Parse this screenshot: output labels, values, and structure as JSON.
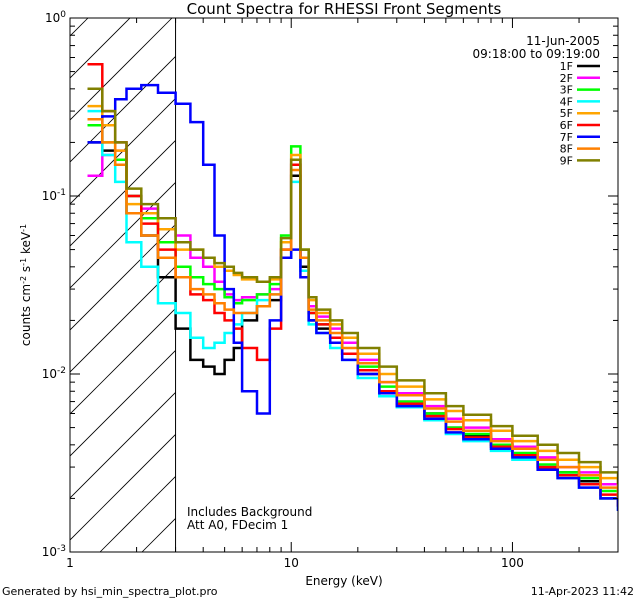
{
  "chart_data": {
    "type": "line",
    "title": "Count Spectra for RHESSI Front Segments",
    "xlabel": "Energy (keV)",
    "ylabel_parts": {
      "a": "counts cm",
      "b": "-2",
      "c": " s",
      "d": "-1",
      "e": " keV",
      "f": "-1"
    },
    "xscale": "log",
    "yscale": "log",
    "xlim": [
      1,
      300
    ],
    "ylim": [
      0.001,
      1
    ],
    "x_tick_labels": [
      {
        "v": 1,
        "t": "1"
      },
      {
        "v": 10,
        "t": "10"
      },
      {
        "v": 100,
        "t": "100"
      }
    ],
    "y_tick_labels": [
      {
        "v": 1,
        "base": "10",
        "exp": "0"
      },
      {
        "v": 0.1,
        "base": "10",
        "exp": "-1"
      },
      {
        "v": 0.01,
        "base": "10",
        "exp": "-2"
      },
      {
        "v": 0.001,
        "base": "10",
        "exp": "-3"
      }
    ],
    "shaded_region": {
      "x_from": 1,
      "x_to": 3
    },
    "annotation_top": [
      "11-Jun-2005",
      "09:18:00 to 09:19:00"
    ],
    "annotation_bottom": [
      "Includes Background",
      "Att A0, FDecim 1"
    ],
    "legend_position": "top-right",
    "series": [
      {
        "name": "1F",
        "color": "#000000",
        "energy": [
          1.2,
          1.4,
          1.6,
          1.8,
          2.1,
          2.5,
          3.0,
          3.5,
          4.0,
          4.5,
          5.0,
          5.5,
          6.0,
          7.0,
          8.0,
          9.0,
          10.0,
          11.0,
          12.0,
          13.0,
          15.0,
          17.0,
          20.0,
          25.0,
          30.0,
          40.0,
          50.0,
          60.0,
          80.0,
          100.0,
          130.0,
          160.0,
          200.0,
          250.0,
          300.0
        ],
        "counts": [
          0.2,
          0.18,
          0.15,
          0.08,
          0.06,
          0.035,
          0.018,
          0.012,
          0.011,
          0.01,
          0.012,
          0.014,
          0.02,
          0.024,
          0.026,
          0.045,
          0.13,
          0.04,
          0.02,
          0.018,
          0.016,
          0.013,
          0.01,
          0.008,
          0.007,
          0.006,
          0.005,
          0.0045,
          0.004,
          0.0035,
          0.003,
          0.0028,
          0.0025,
          0.002,
          0.0018
        ]
      },
      {
        "name": "2F",
        "color": "#ff00ff",
        "energy": [
          1.2,
          1.4,
          1.6,
          1.8,
          2.1,
          2.5,
          3.0,
          3.5,
          4.0,
          4.5,
          5.0,
          5.5,
          6.0,
          7.0,
          8.0,
          9.0,
          10.0,
          11.0,
          12.0,
          13.0,
          15.0,
          17.0,
          20.0,
          25.0,
          30.0,
          40.0,
          50.0,
          60.0,
          80.0,
          100.0,
          130.0,
          160.0,
          200.0,
          250.0,
          300.0
        ],
        "counts": [
          0.13,
          0.17,
          0.18,
          0.1,
          0.085,
          0.075,
          0.06,
          0.045,
          0.04,
          0.033,
          0.028,
          0.026,
          0.027,
          0.028,
          0.03,
          0.05,
          0.16,
          0.045,
          0.024,
          0.021,
          0.018,
          0.015,
          0.012,
          0.009,
          0.0078,
          0.0066,
          0.0056,
          0.005,
          0.0043,
          0.0039,
          0.0034,
          0.003,
          0.0028,
          0.0024,
          0.002
        ]
      },
      {
        "name": "3F",
        "color": "#00ff00",
        "energy": [
          1.2,
          1.4,
          1.6,
          1.8,
          2.1,
          2.5,
          3.0,
          3.5,
          4.0,
          4.5,
          5.0,
          5.5,
          6.0,
          7.0,
          8.0,
          9.0,
          10.0,
          11.0,
          12.0,
          13.0,
          15.0,
          17.0,
          20.0,
          25.0,
          30.0,
          40.0,
          50.0,
          60.0,
          80.0,
          100.0,
          130.0,
          160.0,
          200.0,
          250.0,
          300.0
        ],
        "counts": [
          0.25,
          0.2,
          0.16,
          0.1,
          0.075,
          0.055,
          0.04,
          0.035,
          0.032,
          0.03,
          0.027,
          0.025,
          0.026,
          0.028,
          0.032,
          0.06,
          0.19,
          0.05,
          0.022,
          0.019,
          0.016,
          0.013,
          0.011,
          0.0085,
          0.007,
          0.006,
          0.005,
          0.0046,
          0.004,
          0.0036,
          0.0031,
          0.0028,
          0.0026,
          0.0022,
          0.0019
        ]
      },
      {
        "name": "4F",
        "color": "#00ffff",
        "energy": [
          1.2,
          1.4,
          1.6,
          1.8,
          2.1,
          2.5,
          3.0,
          3.5,
          4.0,
          4.5,
          5.0,
          5.5,
          6.0,
          7.0,
          8.0,
          9.0,
          10.0,
          11.0,
          12.0,
          13.0,
          15.0,
          17.0,
          20.0,
          25.0,
          30.0,
          40.0,
          50.0,
          60.0,
          80.0,
          100.0,
          130.0,
          160.0,
          200.0,
          250.0,
          300.0
        ],
        "counts": [
          0.3,
          0.17,
          0.12,
          0.055,
          0.04,
          0.025,
          0.022,
          0.016,
          0.014,
          0.015,
          0.017,
          0.019,
          0.022,
          0.026,
          0.028,
          0.045,
          0.12,
          0.038,
          0.019,
          0.017,
          0.014,
          0.012,
          0.0095,
          0.0075,
          0.0065,
          0.0055,
          0.0046,
          0.0042,
          0.0037,
          0.0033,
          0.0029,
          0.0026,
          0.0023,
          0.002,
          0.0017
        ]
      },
      {
        "name": "5F",
        "color": "#ffa500",
        "energy": [
          1.2,
          1.4,
          1.6,
          1.8,
          2.1,
          2.5,
          3.0,
          3.5,
          4.0,
          4.5,
          5.0,
          5.5,
          6.0,
          7.0,
          8.0,
          9.0,
          10.0,
          11.0,
          12.0,
          13.0,
          15.0,
          17.0,
          20.0,
          25.0,
          30.0,
          40.0,
          50.0,
          60.0,
          80.0,
          100.0,
          130.0,
          160.0,
          200.0,
          250.0,
          300.0
        ],
        "counts": [
          0.32,
          0.25,
          0.18,
          0.09,
          0.08,
          0.065,
          0.05,
          0.05,
          0.045,
          0.04,
          0.038,
          0.036,
          0.034,
          0.033,
          0.034,
          0.055,
          0.17,
          0.05,
          0.026,
          0.022,
          0.019,
          0.016,
          0.013,
          0.01,
          0.0085,
          0.0072,
          0.0062,
          0.0055,
          0.0048,
          0.0042,
          0.0037,
          0.0033,
          0.003,
          0.0026,
          0.0022
        ]
      },
      {
        "name": "6F",
        "color": "#ff0000",
        "energy": [
          1.2,
          1.4,
          1.6,
          1.8,
          2.1,
          2.5,
          3.0,
          3.5,
          4.0,
          4.5,
          5.0,
          5.5,
          6.0,
          7.0,
          8.0,
          9.0,
          10.0,
          11.0,
          12.0,
          13.0,
          15.0,
          17.0,
          20.0,
          25.0,
          30.0,
          40.0,
          50.0,
          60.0,
          80.0,
          100.0,
          130.0,
          160.0,
          200.0,
          250.0,
          300.0
        ],
        "counts": [
          0.55,
          0.3,
          0.2,
          0.1,
          0.07,
          0.05,
          0.035,
          0.028,
          0.026,
          0.022,
          0.02,
          0.018,
          0.014,
          0.012,
          0.018,
          0.05,
          0.15,
          0.045,
          0.022,
          0.019,
          0.016,
          0.013,
          0.0105,
          0.008,
          0.0068,
          0.0058,
          0.0049,
          0.0044,
          0.0039,
          0.0035,
          0.003,
          0.0027,
          0.0024,
          0.0021,
          0.0018
        ]
      },
      {
        "name": "7F",
        "color": "#0000ff",
        "energy": [
          1.2,
          1.4,
          1.6,
          1.8,
          2.1,
          2.5,
          3.0,
          3.5,
          4.0,
          4.5,
          5.0,
          5.5,
          6.0,
          7.0,
          8.0,
          9.0,
          10.0,
          11.0,
          12.0,
          13.0,
          15.0,
          17.0,
          20.0,
          25.0,
          30.0,
          40.0,
          50.0,
          60.0,
          80.0,
          100.0,
          130.0,
          160.0,
          200.0,
          250.0,
          300.0
        ],
        "counts": [
          0.2,
          0.28,
          0.35,
          0.4,
          0.42,
          0.38,
          0.33,
          0.26,
          0.15,
          0.06,
          0.03,
          0.015,
          0.008,
          0.006,
          0.02,
          0.045,
          0.05,
          0.035,
          0.02,
          0.017,
          0.015,
          0.012,
          0.01,
          0.0078,
          0.0066,
          0.0056,
          0.0047,
          0.0043,
          0.0038,
          0.0034,
          0.0029,
          0.0026,
          0.0023,
          0.002,
          0.0017
        ]
      },
      {
        "name": "8F",
        "color": "#ff8000",
        "energy": [
          1.2,
          1.4,
          1.6,
          1.8,
          2.1,
          2.5,
          3.0,
          3.5,
          4.0,
          4.5,
          5.0,
          5.5,
          6.0,
          7.0,
          8.0,
          9.0,
          10.0,
          11.0,
          12.0,
          13.0,
          15.0,
          17.0,
          20.0,
          25.0,
          30.0,
          40.0,
          50.0,
          60.0,
          80.0,
          100.0,
          130.0,
          160.0,
          200.0,
          250.0,
          300.0
        ],
        "counts": [
          0.27,
          0.2,
          0.15,
          0.08,
          0.06,
          0.045,
          0.035,
          0.03,
          0.028,
          0.025,
          0.023,
          0.022,
          0.022,
          0.024,
          0.028,
          0.05,
          0.14,
          0.045,
          0.023,
          0.02,
          0.017,
          0.014,
          0.0115,
          0.009,
          0.0076,
          0.0064,
          0.0054,
          0.0048,
          0.0042,
          0.0038,
          0.0033,
          0.003,
          0.0027,
          0.0023,
          0.002
        ]
      },
      {
        "name": "9F",
        "color": "#808000",
        "energy": [
          1.2,
          1.4,
          1.6,
          1.8,
          2.1,
          2.5,
          3.0,
          3.5,
          4.0,
          4.5,
          5.0,
          5.5,
          6.0,
          7.0,
          8.0,
          9.0,
          10.0,
          11.0,
          12.0,
          13.0,
          15.0,
          17.0,
          20.0,
          25.0,
          30.0,
          40.0,
          50.0,
          60.0,
          80.0,
          100.0,
          130.0,
          160.0,
          200.0,
          250.0,
          300.0
        ],
        "counts": [
          0.4,
          0.3,
          0.2,
          0.11,
          0.09,
          0.075,
          0.055,
          0.05,
          0.045,
          0.042,
          0.04,
          0.037,
          0.035,
          0.033,
          0.035,
          0.058,
          0.16,
          0.05,
          0.027,
          0.023,
          0.02,
          0.017,
          0.014,
          0.011,
          0.0092,
          0.0078,
          0.0066,
          0.0059,
          0.0051,
          0.0045,
          0.004,
          0.0036,
          0.0032,
          0.0028,
          0.0024
        ]
      }
    ]
  },
  "footer": {
    "left": "Generated by hsi_min_spectra_plot.pro",
    "right": "11-Apr-2023 11:42"
  }
}
